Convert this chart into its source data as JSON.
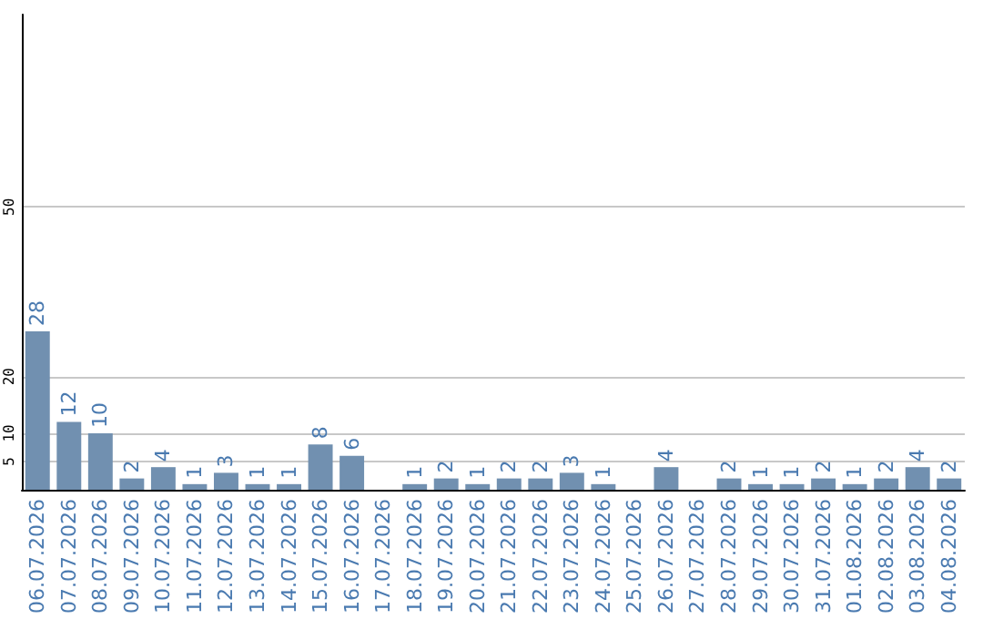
{
  "chart_data": {
    "type": "bar",
    "categories": [
      "06.07.2026",
      "07.07.2026",
      "08.07.2026",
      "09.07.2026",
      "10.07.2026",
      "11.07.2026",
      "12.07.2026",
      "13.07.2026",
      "14.07.2026",
      "15.07.2026",
      "16.07.2026",
      "17.07.2026",
      "18.07.2026",
      "19.07.2026",
      "20.07.2026",
      "21.07.2026",
      "22.07.2026",
      "23.07.2026",
      "24.07.2026",
      "25.07.2026",
      "26.07.2026",
      "27.07.2026",
      "28.07.2026",
      "29.07.2026",
      "30.07.2026",
      "31.07.2026",
      "01.08.2026",
      "02.08.2026",
      "03.08.2026",
      "04.08.2026"
    ],
    "values": [
      28,
      12,
      10,
      2,
      4,
      1,
      3,
      1,
      1,
      8,
      6,
      null,
      1,
      2,
      1,
      2,
      2,
      3,
      1,
      null,
      4,
      null,
      2,
      1,
      1,
      2,
      1,
      2,
      4,
      2
    ],
    "color": "#7190b0",
    "ylim": [
      0,
      84
    ],
    "yticks": [
      5,
      10,
      20,
      50
    ],
    "grid": "y",
    "data_labels": true
  }
}
